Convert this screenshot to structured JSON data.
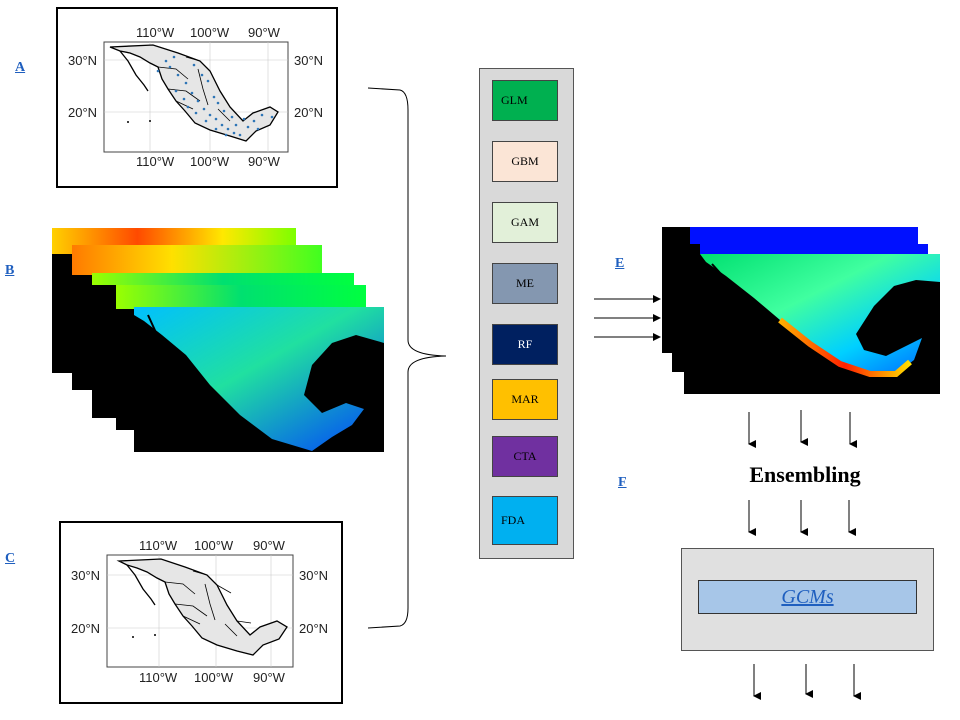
{
  "panel_labels": {
    "a": "A",
    "b": "B",
    "c": "C",
    "e": "E",
    "f": "F"
  },
  "map_axes": {
    "top_ticks": [
      "110°W",
      "100°W",
      "90°W"
    ],
    "bottom_ticks": [
      "110°W",
      "100°W",
      "90°W"
    ],
    "left_ticks": [
      "30°N",
      "20°N"
    ],
    "right_ticks": [
      "30°N",
      "20°N"
    ]
  },
  "models": [
    {
      "label": "GLM",
      "color": "#00b050",
      "text_color": "#000000",
      "align": "left"
    },
    {
      "label": "GBM",
      "color": "#fbe5d6",
      "text_color": "#000000",
      "align": "center"
    },
    {
      "label": "GAM",
      "color": "#e2f0d9",
      "text_color": "#000000",
      "align": "center"
    },
    {
      "label": "ME",
      "color": "#8497b0",
      "text_color": "#000000",
      "align": "center"
    },
    {
      "label": "RF",
      "color": "#002060",
      "text_color": "#ffffff",
      "align": "center"
    },
    {
      "label": "MAR",
      "color": "#ffc000",
      "text_color": "#000000",
      "align": "center"
    },
    {
      "label": "CTA",
      "color": "#7030a0",
      "text_color": "#000000",
      "align": "center"
    },
    {
      "label": "FDA",
      "color": "#00b0f0",
      "text_color": "#000000",
      "align": "left"
    }
  ],
  "ensembling_label": "Ensembling",
  "gcm_label": "GCMs",
  "colors": {
    "link_blue": "#1f5fbf",
    "occurrence_points": "#2e75b6",
    "country_fill": "#e6e6e6",
    "panel_gray": "#d9d9d9"
  }
}
